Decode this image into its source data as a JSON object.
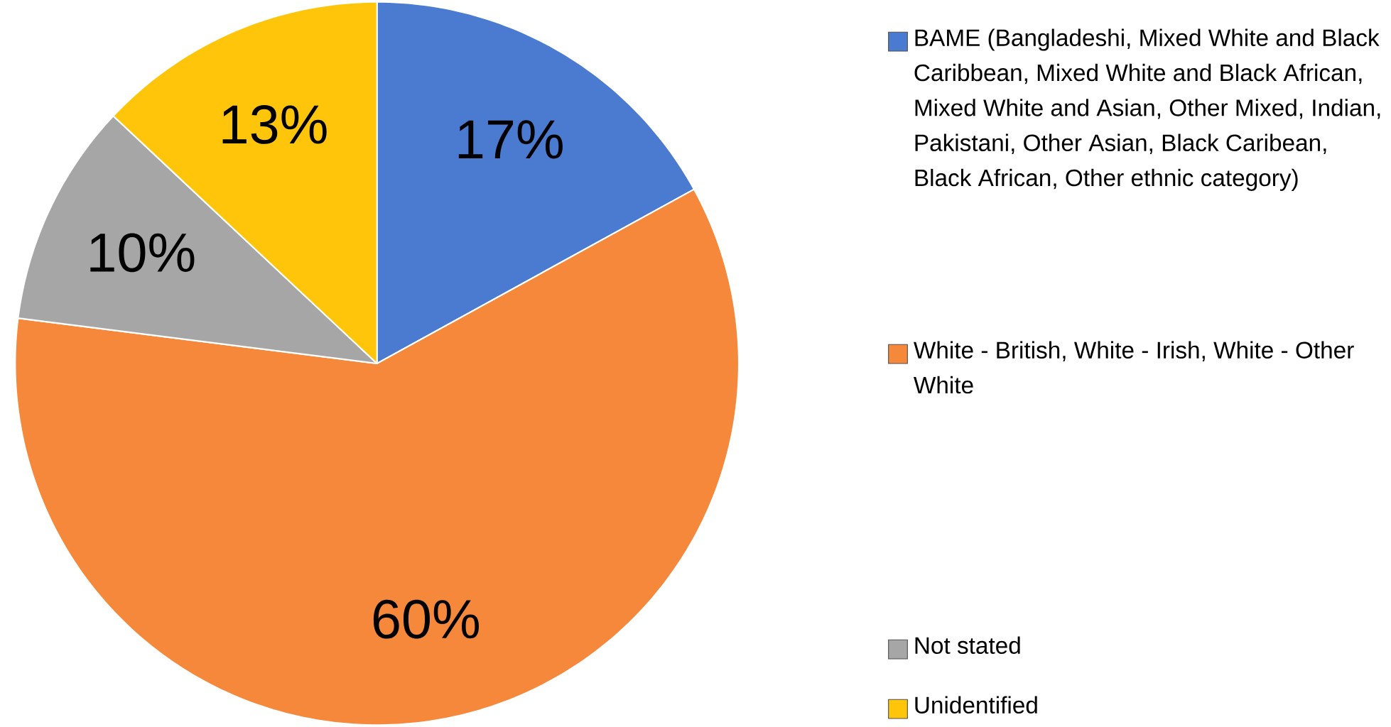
{
  "chart_data": {
    "type": "pie",
    "categories": [
      "BAME (Bangladeshi, Mixed White and Black Caribbean, Mixed White and Black African, Mixed White and Asian, Other Mixed, Indian, Pakistani, Other Asian, Black Caribean, Black African, Other ethnic category)",
      "White - British, White - Irish, White - Other White",
      "Not stated",
      "Unidentified"
    ],
    "values": [
      17,
      60,
      10,
      13
    ],
    "value_labels": [
      "17%",
      "60%",
      "10%",
      "13%"
    ],
    "colors": [
      "#4a7bd0",
      "#f5883a",
      "#a6a6a6",
      "#ffc50a"
    ],
    "legend": "right"
  }
}
